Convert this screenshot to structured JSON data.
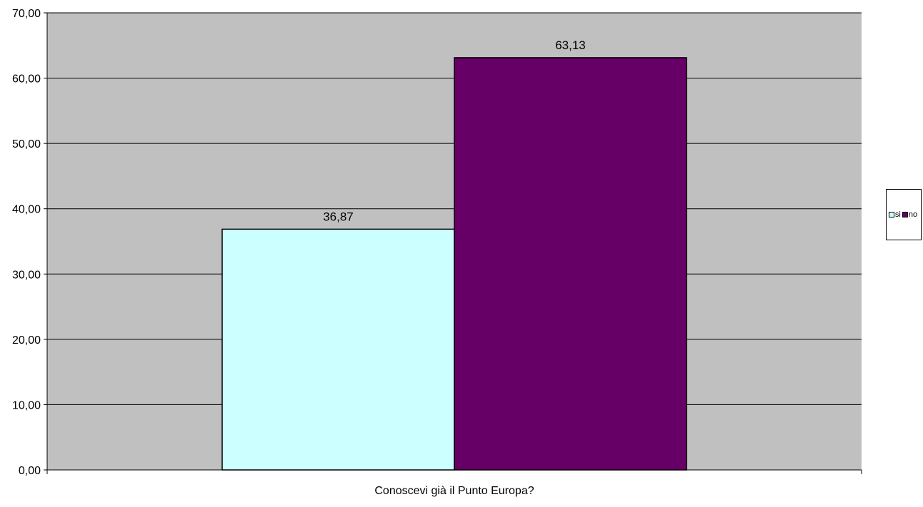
{
  "chart_data": {
    "type": "bar",
    "categories": [
      "Conoscevi già il Punto Europa?"
    ],
    "series": [
      {
        "name": "si",
        "values": [
          36.87
        ],
        "label": "36,87",
        "color": "#CCFFFF"
      },
      {
        "name": "no",
        "values": [
          63.13
        ],
        "label": "63,13",
        "color": "#660066"
      }
    ],
    "ylim": [
      0,
      70
    ],
    "yticks": [
      0,
      10,
      20,
      30,
      40,
      50,
      60,
      70
    ],
    "ytick_labels": [
      "0,00",
      "10,00",
      "20,00",
      "30,00",
      "40,00",
      "50,00",
      "60,00",
      "70,00"
    ],
    "grid": true,
    "plot_background": "#C0C0C0",
    "legend_position": "right"
  }
}
